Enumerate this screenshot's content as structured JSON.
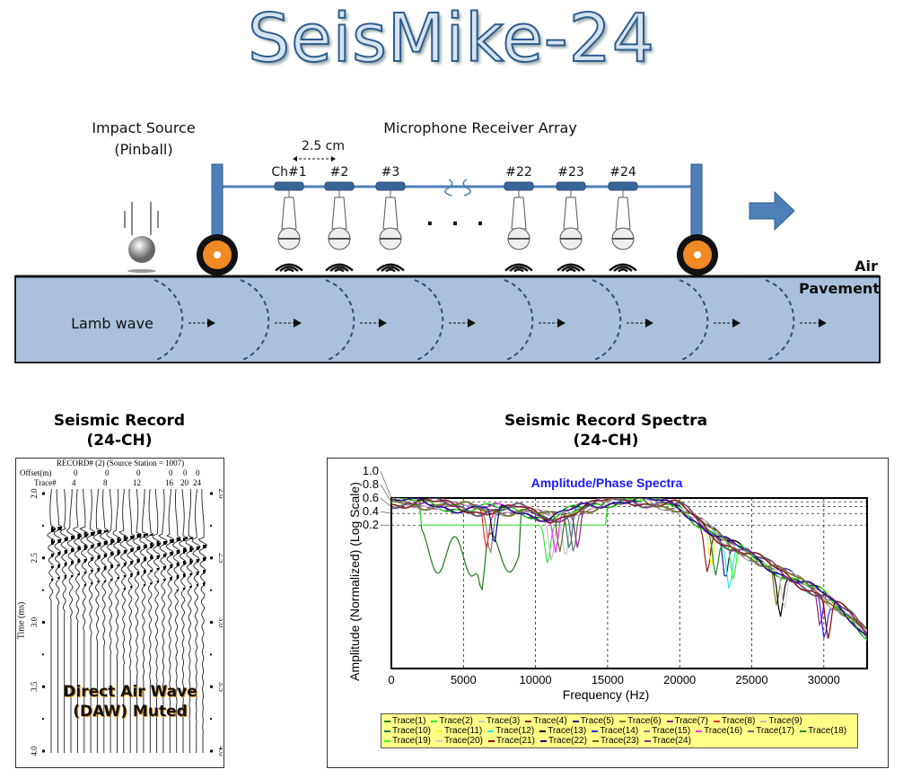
{
  "title": "SeisMike-24",
  "diagram": {
    "source_label_line1": "Impact Source",
    "source_label_line2": "(Pinball)",
    "array_label": "Microphone Receiver  Array",
    "spacing_label": "2.5 cm",
    "channels": [
      "Ch#1",
      "#2",
      "#3",
      "#22",
      "#23",
      "#24"
    ],
    "ellipsis": ". . .",
    "air_label": "Air",
    "pavement_label": "Pavement",
    "wave_label": "Lamb wave",
    "colors": {
      "pavement": "#a9c1dc",
      "frame": "#4f7fb8",
      "wheel": "#f08a24"
    }
  },
  "record": {
    "heading_line1": "Seismic Record",
    "heading_line2": "(24-CH)",
    "header": "RECORD# (2) (Source Station = 1007)",
    "offset_label": "Offset(m)",
    "offsets": [
      "0",
      "0",
      "0",
      "0",
      "0",
      "0"
    ],
    "trace_label": "Trace#",
    "trace_numbers": [
      "4",
      "8",
      "12",
      "16",
      "20",
      "24"
    ],
    "time_axis_label": "Time (ms)",
    "time_ticks": [
      "2.0",
      "2.5",
      "3.0",
      "3.5",
      "4.0"
    ],
    "annotation_line1": "Direct Air Wave",
    "annotation_line2": "(DAW) Muted"
  },
  "chart_data": {
    "type": "line",
    "heading_line1": "Seismic Record Spectra",
    "heading_line2": "(24-CH)",
    "title": "Amplitude/Phase Spectra",
    "xlabel": "Frequency (Hz)",
    "ylabel": "Amplitude (Normalized) (Log Scale)",
    "xlim": [
      0,
      33000
    ],
    "ylim": [
      4e-05,
      1.0
    ],
    "yscale": "log",
    "x_ticks": [
      "0",
      "5000",
      "10000",
      "15000",
      "20000",
      "25000",
      "30000"
    ],
    "y_ticks": [
      "1.0",
      "0.8",
      "0.6",
      "0.4",
      "0.2"
    ],
    "grid": true,
    "legend_placement": "bottom",
    "typical_curve": {
      "x": [
        0,
        3000,
        6000,
        9000,
        11000,
        13000,
        16000,
        20000,
        23000,
        26000,
        28000,
        30000,
        32000,
        33000
      ],
      "y": [
        0.8,
        0.7,
        0.5,
        0.5,
        0.3,
        0.5,
        1.0,
        0.6,
        0.08,
        0.02,
        0.008,
        0.003,
        0.0008,
        0.0003
      ]
    },
    "series": [
      {
        "name": "Trace(1)",
        "color": "#1e7a1e"
      },
      {
        "name": "Trace(2)",
        "color": "#33e633"
      },
      {
        "name": "Trace(3)",
        "color": "#c8c8c8"
      },
      {
        "name": "Trace(4)",
        "color": "#8b1a1a"
      },
      {
        "name": "Trace(5)",
        "color": "#1a1a8b"
      },
      {
        "name": "Trace(6)",
        "color": "#7a7a1e"
      },
      {
        "name": "Trace(7)",
        "color": "#8b1a8b"
      },
      {
        "name": "Trace(8)",
        "color": "#ff2a2a"
      },
      {
        "name": "Trace(9)",
        "color": "#bdbdbd"
      },
      {
        "name": "Trace(10)",
        "color": "#1e7a6a"
      },
      {
        "name": "Trace(11)",
        "color": "#f5f52a"
      },
      {
        "name": "Trace(12)",
        "color": "#2ae6e6"
      },
      {
        "name": "Trace(13)",
        "color": "#000000"
      },
      {
        "name": "Trace(14)",
        "color": "#2a2aff"
      },
      {
        "name": "Trace(15)",
        "color": "#808080"
      },
      {
        "name": "Trace(16)",
        "color": "#ff2aff"
      },
      {
        "name": "Trace(17)",
        "color": "#6a6a6a"
      },
      {
        "name": "Trace(18)",
        "color": "#1e8b1e"
      },
      {
        "name": "Trace(19)",
        "color": "#2aff2a"
      },
      {
        "name": "Trace(20)",
        "color": "#d0d0d0"
      },
      {
        "name": "Trace(21)",
        "color": "#8b0000"
      },
      {
        "name": "Trace(22)",
        "color": "#00008b"
      },
      {
        "name": "Trace(23)",
        "color": "#6b6b1e"
      },
      {
        "name": "Trace(24)",
        "color": "#8b2a8b"
      }
    ]
  }
}
